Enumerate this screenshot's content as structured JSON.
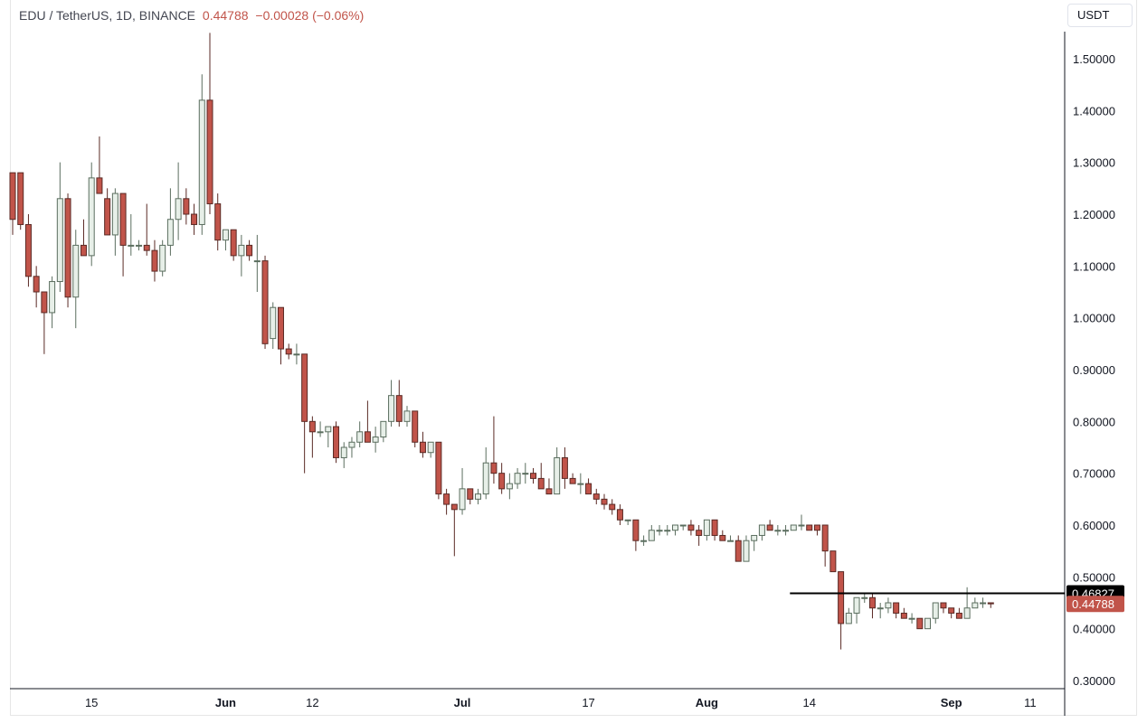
{
  "header": {
    "symbol": "EDU / TetherUS, 1D, BINANCE",
    "last": "0.44788",
    "change": "−0.00028 (−0.06%)"
  },
  "currency_button": "USDT",
  "colors": {
    "up_fill": "#e7efe8",
    "up_border": "#5b6e5f",
    "down_fill": "#c1544a",
    "down_border": "#5a2a25",
    "line": "#000000",
    "last_badge": "#c1544a"
  },
  "chart_data": {
    "type": "candlestick",
    "ylim": [
      0.28,
      1.56
    ],
    "y_ticks": [
      "1.50000",
      "1.40000",
      "1.30000",
      "1.20000",
      "1.10000",
      "1.00000",
      "0.90000",
      "0.80000",
      "0.70000",
      "0.60000",
      "0.50000",
      "0.40000",
      "0.30000"
    ],
    "y_tick_values": [
      1.5,
      1.4,
      1.3,
      1.2,
      1.1,
      1.0,
      0.9,
      0.8,
      0.7,
      0.6,
      0.5,
      0.4,
      0.3
    ],
    "x_ticks": [
      {
        "label": "15",
        "index": 10
      },
      {
        "label": "Jun",
        "index": 27
      },
      {
        "label": "12",
        "index": 38
      },
      {
        "label": "Jul",
        "index": 57
      },
      {
        "label": "17",
        "index": 73
      },
      {
        "label": "Aug",
        "index": 88
      },
      {
        "label": "14",
        "index": 101
      },
      {
        "label": "Sep",
        "index": 119
      },
      {
        "label": "11",
        "index": 129
      }
    ],
    "candles": [
      [
        1.28,
        1.28,
        1.16,
        1.19
      ],
      [
        1.28,
        1.28,
        1.17,
        1.18
      ],
      [
        1.18,
        1.2,
        1.06,
        1.08
      ],
      [
        1.08,
        1.1,
        1.02,
        1.05
      ],
      [
        1.05,
        1.05,
        0.93,
        1.01
      ],
      [
        1.01,
        1.08,
        0.98,
        1.07
      ],
      [
        1.07,
        1.3,
        1.05,
        1.23
      ],
      [
        1.23,
        1.24,
        1.02,
        1.04
      ],
      [
        1.04,
        1.17,
        0.98,
        1.14
      ],
      [
        1.14,
        1.19,
        1.12,
        1.12
      ],
      [
        1.12,
        1.3,
        1.1,
        1.27
      ],
      [
        1.27,
        1.35,
        1.24,
        1.24
      ],
      [
        1.23,
        1.25,
        1.16,
        1.16
      ],
      [
        1.16,
        1.25,
        1.12,
        1.24
      ],
      [
        1.24,
        1.24,
        1.08,
        1.14
      ],
      [
        1.14,
        1.2,
        1.12,
        1.14
      ],
      [
        1.14,
        1.15,
        1.13,
        1.14
      ],
      [
        1.14,
        1.22,
        1.12,
        1.13
      ],
      [
        1.13,
        1.15,
        1.07,
        1.09
      ],
      [
        1.09,
        1.15,
        1.08,
        1.14
      ],
      [
        1.14,
        1.25,
        1.12,
        1.19
      ],
      [
        1.19,
        1.3,
        1.15,
        1.23
      ],
      [
        1.23,
        1.25,
        1.18,
        1.2
      ],
      [
        1.2,
        1.22,
        1.16,
        1.18
      ],
      [
        1.18,
        1.47,
        1.16,
        1.42
      ],
      [
        1.42,
        1.55,
        1.2,
        1.22
      ],
      [
        1.22,
        1.24,
        1.13,
        1.15
      ],
      [
        1.15,
        1.17,
        1.13,
        1.17
      ],
      [
        1.17,
        1.17,
        1.11,
        1.12
      ],
      [
        1.12,
        1.16,
        1.08,
        1.14
      ],
      [
        1.14,
        1.15,
        1.11,
        1.12
      ],
      [
        1.11,
        1.16,
        1.05,
        1.11
      ],
      [
        1.11,
        1.12,
        0.94,
        0.95
      ],
      [
        0.96,
        1.03,
        0.94,
        1.02
      ],
      [
        1.02,
        1.02,
        0.91,
        0.94
      ],
      [
        0.94,
        0.95,
        0.92,
        0.93
      ],
      [
        0.93,
        0.95,
        0.91,
        0.93
      ],
      [
        0.93,
        0.93,
        0.7,
        0.8
      ],
      [
        0.8,
        0.81,
        0.73,
        0.78
      ],
      [
        0.78,
        0.8,
        0.77,
        0.78
      ],
      [
        0.78,
        0.79,
        0.75,
        0.79
      ],
      [
        0.79,
        0.8,
        0.72,
        0.73
      ],
      [
        0.73,
        0.76,
        0.71,
        0.75
      ],
      [
        0.75,
        0.77,
        0.73,
        0.76
      ],
      [
        0.76,
        0.8,
        0.75,
        0.78
      ],
      [
        0.78,
        0.84,
        0.76,
        0.76
      ],
      [
        0.76,
        0.79,
        0.74,
        0.77
      ],
      [
        0.77,
        0.8,
        0.76,
        0.8
      ],
      [
        0.8,
        0.88,
        0.79,
        0.85
      ],
      [
        0.85,
        0.88,
        0.79,
        0.8
      ],
      [
        0.8,
        0.83,
        0.79,
        0.82
      ],
      [
        0.82,
        0.82,
        0.75,
        0.76
      ],
      [
        0.76,
        0.78,
        0.73,
        0.74
      ],
      [
        0.74,
        0.76,
        0.73,
        0.76
      ],
      [
        0.76,
        0.76,
        0.65,
        0.66
      ],
      [
        0.66,
        0.67,
        0.62,
        0.64
      ],
      [
        0.64,
        0.64,
        0.54,
        0.63
      ],
      [
        0.63,
        0.71,
        0.62,
        0.67
      ],
      [
        0.67,
        0.67,
        0.64,
        0.65
      ],
      [
        0.65,
        0.67,
        0.64,
        0.66
      ],
      [
        0.66,
        0.75,
        0.65,
        0.72
      ],
      [
        0.72,
        0.81,
        0.68,
        0.7
      ],
      [
        0.7,
        0.72,
        0.66,
        0.67
      ],
      [
        0.67,
        0.7,
        0.65,
        0.68
      ],
      [
        0.68,
        0.71,
        0.67,
        0.7
      ],
      [
        0.7,
        0.72,
        0.68,
        0.7
      ],
      [
        0.7,
        0.71,
        0.68,
        0.69
      ],
      [
        0.69,
        0.72,
        0.67,
        0.67
      ],
      [
        0.67,
        0.69,
        0.66,
        0.66
      ],
      [
        0.66,
        0.75,
        0.66,
        0.73
      ],
      [
        0.73,
        0.75,
        0.67,
        0.69
      ],
      [
        0.69,
        0.7,
        0.68,
        0.68
      ],
      [
        0.68,
        0.7,
        0.66,
        0.68
      ],
      [
        0.68,
        0.69,
        0.66,
        0.66
      ],
      [
        0.66,
        0.67,
        0.64,
        0.65
      ],
      [
        0.65,
        0.66,
        0.63,
        0.64
      ],
      [
        0.64,
        0.65,
        0.62,
        0.63
      ],
      [
        0.63,
        0.64,
        0.6,
        0.61
      ],
      [
        0.61,
        0.61,
        0.6,
        0.61
      ],
      [
        0.61,
        0.61,
        0.55,
        0.57
      ],
      [
        0.57,
        0.58,
        0.56,
        0.57
      ],
      [
        0.57,
        0.6,
        0.57,
        0.59
      ],
      [
        0.59,
        0.6,
        0.58,
        0.59
      ],
      [
        0.59,
        0.6,
        0.58,
        0.59
      ],
      [
        0.59,
        0.6,
        0.58,
        0.6
      ],
      [
        0.6,
        0.6,
        0.59,
        0.6
      ],
      [
        0.6,
        0.61,
        0.58,
        0.59
      ],
      [
        0.59,
        0.6,
        0.56,
        0.58
      ],
      [
        0.58,
        0.61,
        0.57,
        0.61
      ],
      [
        0.61,
        0.61,
        0.57,
        0.58
      ],
      [
        0.58,
        0.59,
        0.57,
        0.57
      ],
      [
        0.57,
        0.58,
        0.57,
        0.57
      ],
      [
        0.57,
        0.58,
        0.53,
        0.53
      ],
      [
        0.53,
        0.58,
        0.53,
        0.57
      ],
      [
        0.57,
        0.58,
        0.55,
        0.58
      ],
      [
        0.58,
        0.6,
        0.57,
        0.6
      ],
      [
        0.6,
        0.61,
        0.59,
        0.59
      ],
      [
        0.59,
        0.6,
        0.58,
        0.59
      ],
      [
        0.59,
        0.6,
        0.58,
        0.59
      ],
      [
        0.59,
        0.6,
        0.59,
        0.6
      ],
      [
        0.6,
        0.62,
        0.59,
        0.6
      ],
      [
        0.6,
        0.6,
        0.59,
        0.59
      ],
      [
        0.6,
        0.6,
        0.58,
        0.59
      ],
      [
        0.6,
        0.6,
        0.52,
        0.55
      ],
      [
        0.55,
        0.55,
        0.51,
        0.51
      ],
      [
        0.51,
        0.51,
        0.36,
        0.41
      ],
      [
        0.41,
        0.44,
        0.41,
        0.43
      ],
      [
        0.43,
        0.46,
        0.41,
        0.46
      ],
      [
        0.46,
        0.47,
        0.45,
        0.46
      ],
      [
        0.46,
        0.47,
        0.42,
        0.44
      ],
      [
        0.44,
        0.45,
        0.42,
        0.44
      ],
      [
        0.44,
        0.46,
        0.43,
        0.45
      ],
      [
        0.45,
        0.45,
        0.42,
        0.43
      ],
      [
        0.43,
        0.44,
        0.42,
        0.42
      ],
      [
        0.42,
        0.43,
        0.41,
        0.42
      ],
      [
        0.42,
        0.42,
        0.4,
        0.4
      ],
      [
        0.4,
        0.42,
        0.4,
        0.42
      ],
      [
        0.42,
        0.45,
        0.41,
        0.45
      ],
      [
        0.45,
        0.45,
        0.43,
        0.44
      ],
      [
        0.44,
        0.44,
        0.42,
        0.43
      ],
      [
        0.43,
        0.44,
        0.42,
        0.42
      ],
      [
        0.42,
        0.48,
        0.42,
        0.44
      ],
      [
        0.44,
        0.46,
        0.44,
        0.45
      ],
      [
        0.45,
        0.46,
        0.44,
        0.45
      ],
      [
        0.45,
        0.45,
        0.44,
        0.448
      ]
    ],
    "horizontal_line": {
      "value": 0.46827,
      "label": "0.46827",
      "from_index": 99
    },
    "last_price": {
      "value": 0.44788,
      "label": "0.44788"
    }
  }
}
